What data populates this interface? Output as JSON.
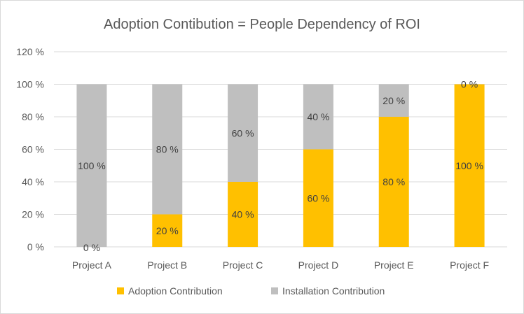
{
  "chart_data": {
    "type": "bar",
    "stacked": true,
    "title": "Adoption Contibution = People Dependency of ROI",
    "xlabel": "",
    "ylabel": "",
    "ylim": [
      0,
      120
    ],
    "y_ticks": [
      "0 %",
      "20 %",
      "40 %",
      "60 %",
      "80 %",
      "100 %",
      "120 %"
    ],
    "y_tick_values": [
      0,
      20,
      40,
      60,
      80,
      100,
      120
    ],
    "grid": true,
    "legend_position": "bottom",
    "categories": [
      "Project A",
      "Project B",
      "Project C",
      "Project D",
      "Project E",
      "Project F"
    ],
    "series": [
      {
        "name": "Adoption Contribution",
        "color": "#ffc000",
        "values": [
          0,
          20,
          40,
          60,
          80,
          100
        ],
        "labels": [
          "0 %",
          "20 %",
          "40 %",
          "60 %",
          "80 %",
          "100 %"
        ]
      },
      {
        "name": "Installation Contribution",
        "color": "#bfbfbf",
        "values": [
          100,
          80,
          60,
          40,
          20,
          0
        ],
        "labels": [
          "100 %",
          "80 %",
          "60 %",
          "40 %",
          "20 %",
          "0 %"
        ]
      }
    ]
  }
}
